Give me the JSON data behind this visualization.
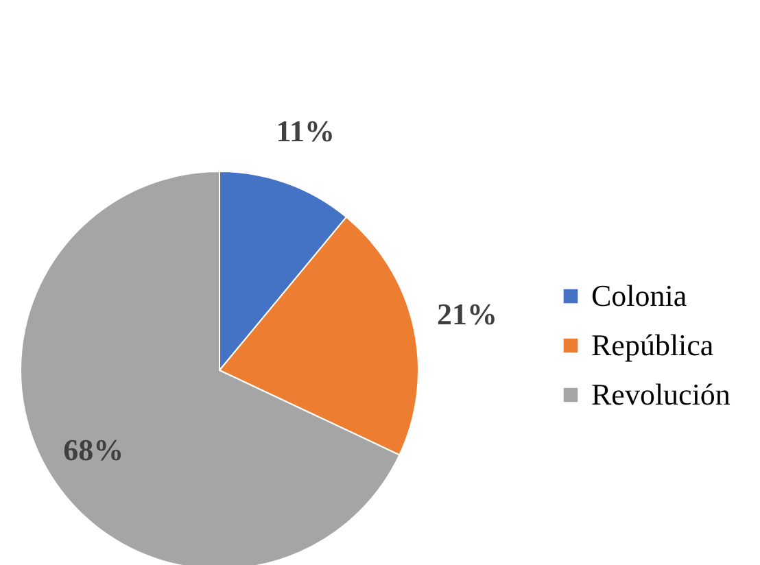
{
  "chart_data": {
    "type": "pie",
    "categories": [
      "Colonia",
      "República",
      "Revolución"
    ],
    "values": [
      11,
      21,
      68
    ],
    "colors": [
      "#4472c4",
      "#ed7d31",
      "#a5a5a5"
    ],
    "value_labels": [
      "11%",
      "21%",
      "68%"
    ],
    "legend": "right"
  }
}
